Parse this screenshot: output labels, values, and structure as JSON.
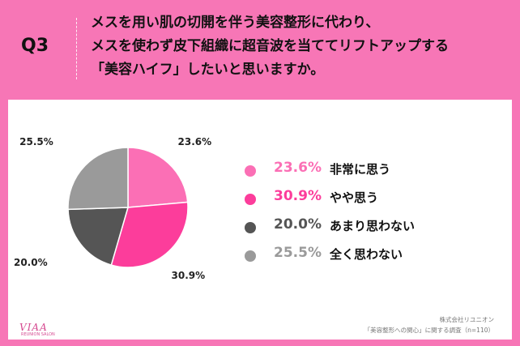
{
  "header": {
    "qlabel": "Q3",
    "question_lines": [
      "メスを用い肌の切開を伴う美容整形に代わり、",
      "メスを使わず皮下組織に超音波を当ててリフトアップする",
      "「美容ハイフ」したいと思いますか。"
    ]
  },
  "chart_data": {
    "type": "pie",
    "slices": [
      {
        "label": "非常に思う",
        "value": 23.6,
        "value_text": "23.6%",
        "color": "#fb6fb5",
        "pct_color": "#fb6fb5"
      },
      {
        "label": "やや思う",
        "value": 30.9,
        "value_text": "30.9%",
        "color": "#fc3d9b",
        "pct_color": "#fc3d9b"
      },
      {
        "label": "あまり思わない",
        "value": 20.0,
        "value_text": "20.0%",
        "color": "#555555",
        "pct_color": "#555555"
      },
      {
        "label": "全く思わない",
        "value": 25.5,
        "value_text": "25.5%",
        "color": "#9a9a9a",
        "pct_color": "#9a9a9a"
      }
    ],
    "start": "top",
    "direction": "clockwise",
    "legend_position": "right"
  },
  "source": {
    "company": "株式会社リユニオン",
    "survey": "「美容整形への関心」に関する調査（n=110）"
  },
  "logo": {
    "text": "VIAA",
    "sub": "REUNION SALON"
  }
}
